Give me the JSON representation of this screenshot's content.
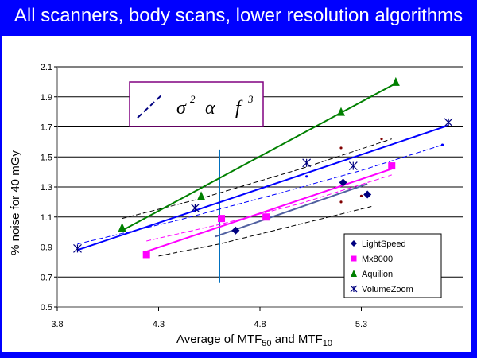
{
  "slide": {
    "title": "All scanners, body scans, lower resolution algorithms",
    "background": "#0000ff"
  },
  "formula_box": {
    "sigma": "σ",
    "sq": "2",
    "alpha": "α",
    "f": "f",
    "cube": "3",
    "dash_color": "#000080"
  },
  "chart_data": {
    "type": "scatter",
    "xlabel_parts": [
      "Average of MTF",
      "50",
      " and MTF",
      "10"
    ],
    "ylabel": "% noise for 40 mGy",
    "xlim": [
      3.8,
      5.8
    ],
    "ylim": [
      0.5,
      2.1
    ],
    "xticks": [
      "3.8",
      "4.3",
      "4.8",
      "5.3"
    ],
    "xtick_values": [
      3.8,
      4.3,
      4.8,
      5.3
    ],
    "yticks": [
      "0.5",
      "0.7",
      "0.9",
      "1.1",
      "1.3",
      "1.5",
      "1.7",
      "1.9",
      "2.1"
    ],
    "ytick_values": [
      0.5,
      0.7,
      0.9,
      1.1,
      1.3,
      1.5,
      1.7,
      1.9,
      2.1
    ],
    "grid": "horizontal",
    "legend_position": "bottom-right",
    "vertical_marker_x": 4.6,
    "vertical_marker_range": [
      0.66,
      1.55
    ],
    "vertical_marker_color": "#0070c0",
    "series": [
      {
        "name": "LightSpeed",
        "marker": "diamond",
        "color": "#000080",
        "line_color": "#5060a0",
        "points": [
          [
            4.68,
            1.01
          ],
          [
            5.21,
            1.33
          ],
          [
            5.33,
            1.25
          ]
        ],
        "fit": [
          [
            4.58,
            0.97
          ],
          [
            5.33,
            1.32
          ]
        ],
        "power_fit_color": "#000000",
        "power_fit": [
          [
            4.3,
            0.84
          ],
          [
            4.6,
            0.92
          ],
          [
            4.9,
            1.02
          ],
          [
            5.2,
            1.12
          ],
          [
            5.35,
            1.17
          ]
        ],
        "power_fit_markers": [
          [
            5.2,
            1.2
          ],
          [
            5.3,
            1.24
          ]
        ]
      },
      {
        "name": "Mx8000",
        "marker": "square",
        "color": "#ff00ff",
        "line_color": "#ff00ff",
        "points": [
          [
            4.24,
            0.85
          ],
          [
            4.61,
            1.09
          ],
          [
            4.83,
            1.1
          ],
          [
            5.45,
            1.44
          ]
        ],
        "fit": [
          [
            4.24,
            0.87
          ],
          [
            5.45,
            1.42
          ]
        ],
        "power_fit_color": "#ff00ff",
        "power_fit": [
          [
            4.24,
            0.94
          ],
          [
            4.6,
            1.05
          ],
          [
            5.0,
            1.19
          ],
          [
            5.45,
            1.38
          ]
        ],
        "power_fit_markers": []
      },
      {
        "name": "Aquilion",
        "marker": "triangle",
        "color": "#008000",
        "line_color": "#008000",
        "points": [
          [
            4.12,
            1.03
          ],
          [
            4.51,
            1.24
          ],
          [
            5.2,
            1.8
          ],
          [
            5.47,
            2.0
          ]
        ],
        "fit": [
          [
            4.12,
            1.01
          ],
          [
            5.47,
            1.99
          ]
        ],
        "power_fit_color": "#000000",
        "power_fit": [
          [
            4.12,
            1.09
          ],
          [
            4.5,
            1.22
          ],
          [
            5.0,
            1.42
          ],
          [
            5.45,
            1.62
          ]
        ],
        "power_fit_markers": [
          [
            5.2,
            1.56
          ],
          [
            5.4,
            1.62
          ]
        ]
      },
      {
        "name": "VolumeZoom",
        "marker": "asterisk",
        "color": "#000080",
        "line_color": "#0000ff",
        "points": [
          [
            3.9,
            0.89
          ],
          [
            4.48,
            1.16
          ],
          [
            5.03,
            1.46
          ],
          [
            5.26,
            1.44
          ],
          [
            5.73,
            1.73
          ]
        ],
        "fit": [
          [
            3.9,
            0.88
          ],
          [
            5.73,
            1.71
          ]
        ],
        "power_fit_color": "#0000ff",
        "power_fit": [
          [
            3.9,
            0.92
          ],
          [
            4.4,
            1.08
          ],
          [
            4.9,
            1.26
          ],
          [
            5.3,
            1.41
          ],
          [
            5.7,
            1.58
          ]
        ],
        "power_fit_markers": [
          [
            5.03,
            1.37
          ],
          [
            5.7,
            1.58
          ]
        ]
      }
    ]
  }
}
